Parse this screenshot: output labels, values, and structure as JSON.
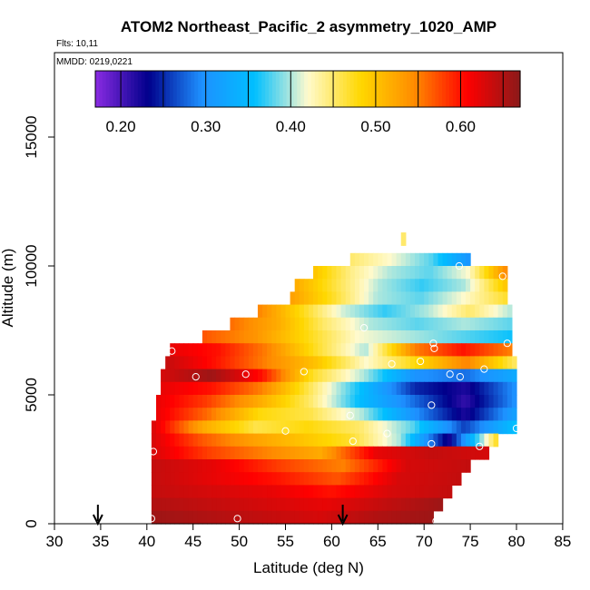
{
  "chart_data": {
    "type": "heatmap",
    "title": "ATOM2 Northeast_Pacific_2 asymmetry_1020_AMP",
    "subtitle_flights": "Flts: 10,11",
    "subtitle_dates": "MMDD: 0219,0221",
    "xlabel": "Latitude (deg N)",
    "ylabel": "Altitude (m)",
    "xlim": [
      30,
      85
    ],
    "ylim": [
      0,
      17500
    ],
    "xticks": [
      30,
      35,
      40,
      45,
      50,
      55,
      60,
      65,
      70,
      75,
      80,
      85
    ],
    "yticks": [
      0,
      5000,
      10000,
      15000
    ],
    "colorbar": {
      "vmin": 0.17,
      "vmax": 0.67,
      "ticks": [
        0.2,
        0.3,
        0.4,
        0.5,
        0.6
      ],
      "tick_labels": [
        "0.20",
        "0.30",
        "0.40",
        "0.50",
        "0.60"
      ],
      "colors": [
        "#8a2be2",
        "#00008b",
        "#1e90ff",
        "#00bfff",
        "#fffacd",
        "#ffd700",
        "#ff8c00",
        "#ff0000",
        "#8b1a1a"
      ]
    },
    "flight_markers_lat": [
      34.7,
      61.2
    ],
    "altitude_bins": [
      {
        "alt": 10800,
        "lat_min": 67.5,
        "lat_max": 68.0,
        "values": [
          0.45
        ]
      },
      {
        "alt": 10000,
        "lat_min": 62.0,
        "lat_max": 75.0,
        "values": [
          0.45,
          0.42,
          0.38,
          0.3
        ]
      },
      {
        "alt": 9500,
        "lat_min": 58.0,
        "lat_max": 79.0,
        "values": [
          0.5,
          0.44,
          0.4,
          0.38,
          0.42,
          0.55
        ]
      },
      {
        "alt": 9000,
        "lat_min": 56.0,
        "lat_max": 79.0,
        "values": [
          0.52,
          0.46,
          0.4,
          0.37,
          0.4,
          0.5
        ]
      },
      {
        "alt": 8500,
        "lat_min": 55.5,
        "lat_max": 79.0,
        "values": [
          0.53,
          0.47,
          0.4,
          0.38,
          0.42,
          0.47
        ]
      },
      {
        "alt": 8000,
        "lat_min": 52.0,
        "lat_max": 79.5,
        "values": [
          0.55,
          0.48,
          0.41,
          0.37,
          0.4,
          0.45,
          0.4
        ]
      },
      {
        "alt": 7500,
        "lat_min": 49.0,
        "lat_max": 79.5,
        "values": [
          0.56,
          0.52,
          0.45,
          0.4,
          0.38,
          0.4,
          0.38
        ]
      },
      {
        "alt": 7000,
        "lat_min": 46.0,
        "lat_max": 79.5,
        "values": [
          0.57,
          0.54,
          0.48,
          0.42,
          0.4,
          0.38,
          0.36
        ]
      },
      {
        "alt": 6500,
        "lat_min": 42.5,
        "lat_max": 79.5,
        "values": [
          0.62,
          0.6,
          0.55,
          0.47,
          0.4,
          0.55,
          0.6,
          0.55
        ]
      },
      {
        "alt": 6000,
        "lat_min": 42.0,
        "lat_max": 80.0,
        "values": [
          0.64,
          0.6,
          0.55,
          0.5,
          0.42,
          0.48,
          0.55,
          0.45
        ]
      },
      {
        "alt": 5500,
        "lat_min": 41.5,
        "lat_max": 80.0,
        "values": [
          0.63,
          0.66,
          0.6,
          0.47,
          0.4,
          0.3,
          0.28,
          0.33
        ]
      },
      {
        "alt": 5000,
        "lat_min": 41.5,
        "lat_max": 80.0,
        "values": [
          0.62,
          0.6,
          0.55,
          0.45,
          0.35,
          0.25,
          0.22,
          0.3
        ]
      },
      {
        "alt": 4500,
        "lat_min": 41.0,
        "lat_max": 80.0,
        "values": [
          0.62,
          0.58,
          0.52,
          0.45,
          0.35,
          0.28,
          0.21,
          0.3
        ]
      },
      {
        "alt": 4000,
        "lat_min": 41.0,
        "lat_max": 80.0,
        "values": [
          0.62,
          0.56,
          0.48,
          0.46,
          0.4,
          0.3,
          0.22,
          0.32
        ]
      },
      {
        "alt": 3500,
        "lat_min": 40.5,
        "lat_max": 80.0,
        "values": [
          0.63,
          0.52,
          0.46,
          0.48,
          0.45,
          0.38,
          0.26,
          0.36
        ]
      },
      {
        "alt": 3000,
        "lat_min": 40.5,
        "lat_max": 78.0,
        "values": [
          0.63,
          0.57,
          0.53,
          0.5,
          0.47,
          0.4,
          0.22,
          0.48
        ]
      },
      {
        "alt": 2500,
        "lat_min": 40.5,
        "lat_max": 77.0,
        "values": [
          0.63,
          0.58,
          0.55,
          0.52,
          0.62,
          0.64,
          0.63
        ]
      },
      {
        "alt": 2000,
        "lat_min": 40.5,
        "lat_max": 75.0,
        "values": [
          0.64,
          0.62,
          0.58,
          0.55,
          0.63,
          0.64
        ]
      },
      {
        "alt": 1500,
        "lat_min": 40.5,
        "lat_max": 74.0,
        "values": [
          0.64,
          0.62,
          0.6,
          0.57,
          0.63,
          0.64
        ]
      },
      {
        "alt": 1000,
        "lat_min": 40.5,
        "lat_max": 73.0,
        "values": [
          0.64,
          0.63,
          0.62,
          0.6,
          0.63,
          0.64
        ]
      },
      {
        "alt": 500,
        "lat_min": 40.5,
        "lat_max": 72.0,
        "values": [
          0.65,
          0.64,
          0.63,
          0.62,
          0.64,
          0.66
        ]
      },
      {
        "alt": 0,
        "lat_min": 40.5,
        "lat_max": 71.0,
        "values": [
          0.66,
          0.65,
          0.64,
          0.63,
          0.65,
          0.66
        ]
      }
    ],
    "sample_points": [
      [
        40.5,
        200
      ],
      [
        49.8,
        200
      ],
      [
        71.3,
        100
      ],
      [
        40.7,
        2800
      ],
      [
        62.3,
        3200
      ],
      [
        70.8,
        3100
      ],
      [
        76.0,
        3000
      ],
      [
        80.0,
        3700
      ],
      [
        55.0,
        3600
      ],
      [
        66.0,
        3500
      ],
      [
        62.0,
        4200
      ],
      [
        70.8,
        4600
      ],
      [
        45.3,
        5700
      ],
      [
        50.7,
        5800
      ],
      [
        57.0,
        5900
      ],
      [
        72.8,
        5800
      ],
      [
        73.9,
        5700
      ],
      [
        66.5,
        6200
      ],
      [
        69.6,
        6300
      ],
      [
        76.5,
        6000
      ],
      [
        42.7,
        6700
      ],
      [
        71.1,
        6800
      ],
      [
        71.0,
        7000
      ],
      [
        79.0,
        7000
      ],
      [
        63.5,
        7600
      ],
      [
        73.8,
        10000
      ],
      [
        78.5,
        9600
      ]
    ]
  }
}
